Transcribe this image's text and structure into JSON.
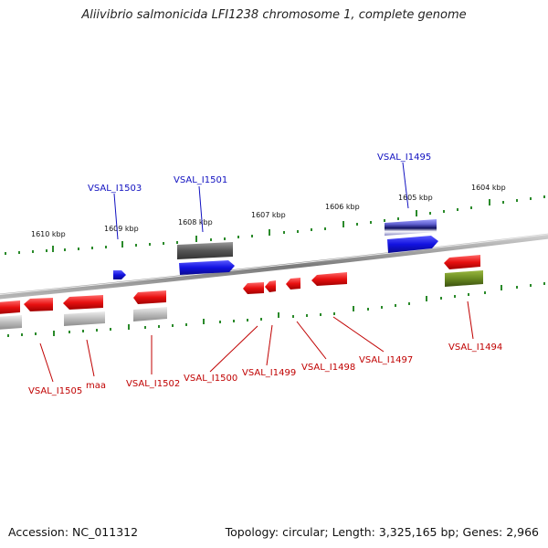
{
  "title": "Aliivibrio salmonicida LFI1238 chromosome 1, complete genome",
  "footer": {
    "accession": "Accession: NC_011312",
    "summary": "Topology: circular; Length: 3,325,165 bp; Genes: 2,966"
  },
  "ruler_labels": [
    "1610 kbp",
    "1609 kbp",
    "1608 kbp",
    "1607 kbp",
    "1606 kbp",
    "1605 kbp",
    "1604 kbp"
  ],
  "forward_gene_labels": [
    "VSAL_I1503",
    "VSAL_I1501",
    "VSAL_I1495"
  ],
  "reverse_gene_labels": [
    "VSAL_I1505",
    "maa",
    "VSAL_I1502",
    "VSAL_I1500",
    "VSAL_I1499",
    "VSAL_I1498",
    "VSAL_I1497",
    "VSAL_I1494"
  ],
  "colors": {
    "forward_label": "#1010c0",
    "reverse_label": "#c00000",
    "tick": "#2a8a2a",
    "backbone": "#888888",
    "forward_gene": "#1818e0",
    "reverse_gene": "#e01010",
    "rna_gray": "#666666",
    "light_gray": "#bbbbbb",
    "purple": "#6060d0",
    "olive": "#6a8a20"
  }
}
